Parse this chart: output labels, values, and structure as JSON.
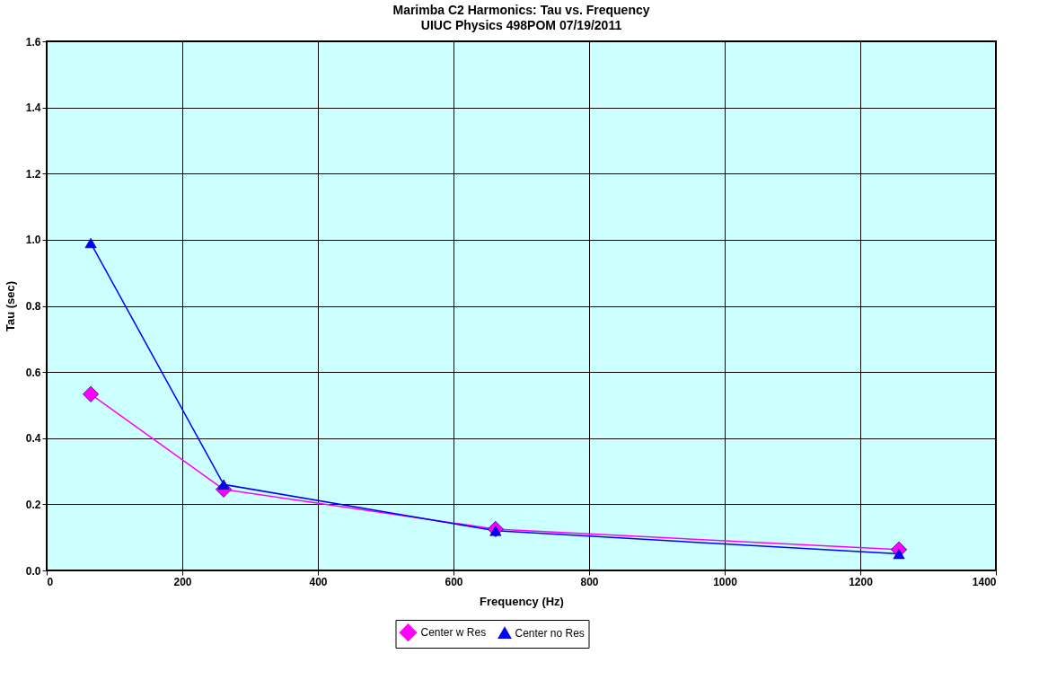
{
  "chart_data": {
    "type": "line",
    "title": "Marimba C2 Harmonics: Tau vs. Frequency",
    "subtitle": "UIUC Physics 498POM    07/19/2011",
    "xlabel": "Frequency (Hz)",
    "ylabel": "Tau (sec)",
    "x": [
      65,
      261,
      662,
      1257
    ],
    "series": [
      {
        "name": "Center w Res",
        "color": "#ff00ff",
        "marker": "diamond",
        "values": [
          0.533,
          0.245,
          0.125,
          0.063
        ]
      },
      {
        "name": "Center no Res",
        "color": "#0000ff",
        "marker": "triangle",
        "values": [
          0.99,
          0.26,
          0.12,
          0.05
        ]
      }
    ],
    "xlim": [
      0,
      1400
    ],
    "xticks": [
      0,
      200,
      400,
      600,
      800,
      1000,
      1200,
      1400
    ],
    "ylim": [
      0,
      1.6
    ],
    "yticks": [
      {
        "value": 0,
        "label": "0.0"
      },
      {
        "value": 0.2,
        "label": "0.2"
      },
      {
        "value": 0.4,
        "label": "0.4"
      },
      {
        "value": 0.6,
        "label": "0.6"
      },
      {
        "value": 0.8,
        "label": "0.8"
      },
      {
        "value": 1.0,
        "label": "1.0"
      },
      {
        "value": 1.2,
        "label": "1.2"
      },
      {
        "value": 1.4,
        "label": "1.4"
      },
      {
        "value": 1.6,
        "label": "1.6"
      }
    ],
    "grid": true,
    "legend": "bottom",
    "line_style": "solid"
  }
}
